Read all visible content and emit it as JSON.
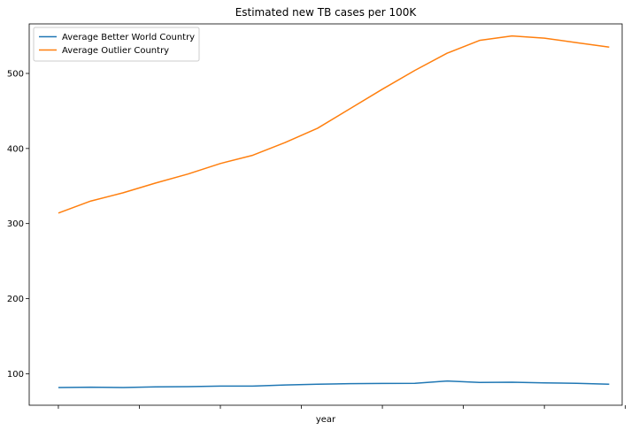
{
  "chart_data": {
    "type": "line",
    "title": "Estimated new TB cases per 100K",
    "xlabel": "year",
    "ylabel": "",
    "x": [
      0,
      1,
      2,
      3,
      4,
      5,
      6,
      7,
      8,
      9,
      10,
      11,
      12,
      13,
      14,
      15,
      16,
      17
    ],
    "xlim": [
      -0.9,
      17.4
    ],
    "ylim": [
      58,
      566
    ],
    "y_ticks": [
      100,
      200,
      300,
      400,
      500
    ],
    "x_tick_positions": [
      0,
      2.5,
      5,
      7.5,
      10,
      12.5,
      15,
      17.5
    ],
    "grid": false,
    "legend_position": "top-left",
    "series": [
      {
        "name": "Average Better World Country",
        "color": "#1f77b4",
        "values": [
          81.5,
          82,
          81.5,
          82.5,
          82.8,
          83.5,
          83.5,
          85,
          86,
          86.8,
          87,
          87.2,
          90.3,
          88.3,
          88.6,
          87.7,
          87.2,
          86
        ]
      },
      {
        "name": "Average Outlier Country",
        "color": "#ff7f0e",
        "values": [
          314,
          330,
          341,
          354,
          366,
          380,
          391,
          408,
          427,
          453,
          479,
          504,
          527,
          544,
          550,
          547,
          541,
          535
        ]
      }
    ]
  }
}
